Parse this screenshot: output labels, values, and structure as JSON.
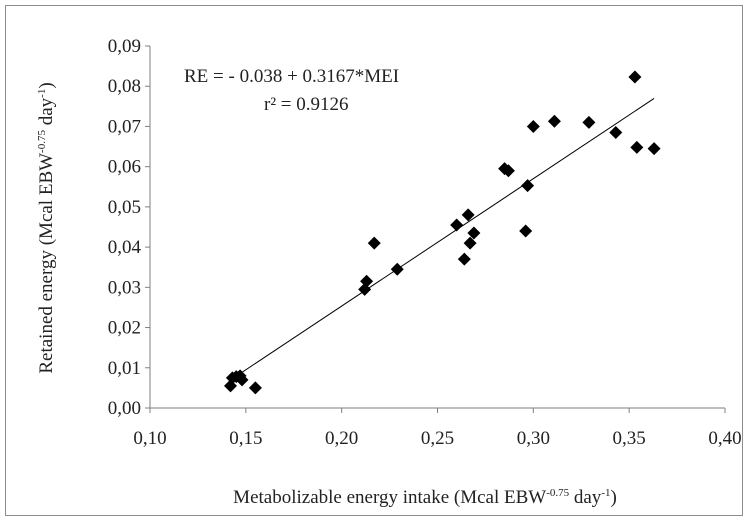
{
  "chart_data": {
    "type": "scatter",
    "xlim": [
      0.1,
      0.4
    ],
    "ylim": [
      0.0,
      0.09
    ],
    "x_ticks": [
      "0,10",
      "0,15",
      "0,20",
      "0,25",
      "0,30",
      "0,35",
      "0,40"
    ],
    "y_ticks": [
      "0,00",
      "0,01",
      "0,02",
      "0,03",
      "0,04",
      "0,05",
      "0,06",
      "0,07",
      "0,08",
      "0,09"
    ],
    "xlabel": {
      "main": "Metabolizable energy intake (Mcal EBW",
      "sup1": "-0.75",
      "mid": " day",
      "sup2": "-1",
      "end": ")"
    },
    "ylabel": {
      "main": "Retained energy (Mcal EBW",
      "sup1": "-0.75",
      "mid": " day",
      "sup2": "-1",
      "end": ")"
    },
    "grid": false,
    "marker": "diamond",
    "marker_color": "#000000",
    "points": [
      {
        "x": 0.142,
        "y": 0.0055
      },
      {
        "x": 0.143,
        "y": 0.0075
      },
      {
        "x": 0.145,
        "y": 0.0078
      },
      {
        "x": 0.147,
        "y": 0.008
      },
      {
        "x": 0.148,
        "y": 0.007
      },
      {
        "x": 0.155,
        "y": 0.005
      },
      {
        "x": 0.212,
        "y": 0.0295
      },
      {
        "x": 0.213,
        "y": 0.0315
      },
      {
        "x": 0.217,
        "y": 0.041
      },
      {
        "x": 0.229,
        "y": 0.0345
      },
      {
        "x": 0.26,
        "y": 0.0455
      },
      {
        "x": 0.264,
        "y": 0.037
      },
      {
        "x": 0.266,
        "y": 0.048
      },
      {
        "x": 0.267,
        "y": 0.041
      },
      {
        "x": 0.269,
        "y": 0.0435
      },
      {
        "x": 0.285,
        "y": 0.0595
      },
      {
        "x": 0.287,
        "y": 0.059
      },
      {
        "x": 0.296,
        "y": 0.044
      },
      {
        "x": 0.297,
        "y": 0.0553
      },
      {
        "x": 0.3,
        "y": 0.07
      },
      {
        "x": 0.311,
        "y": 0.0713
      },
      {
        "x": 0.329,
        "y": 0.071
      },
      {
        "x": 0.343,
        "y": 0.0685
      },
      {
        "x": 0.353,
        "y": 0.0823
      },
      {
        "x": 0.354,
        "y": 0.0648
      },
      {
        "x": 0.363,
        "y": 0.0645
      }
    ],
    "trendline": {
      "intercept": -0.038,
      "slope": 0.3167,
      "x_from": 0.143,
      "x_to": 0.363
    },
    "annotations": [
      "RE = - 0.038 + 0.3167*MEI",
      "r² = 0.9126"
    ]
  }
}
